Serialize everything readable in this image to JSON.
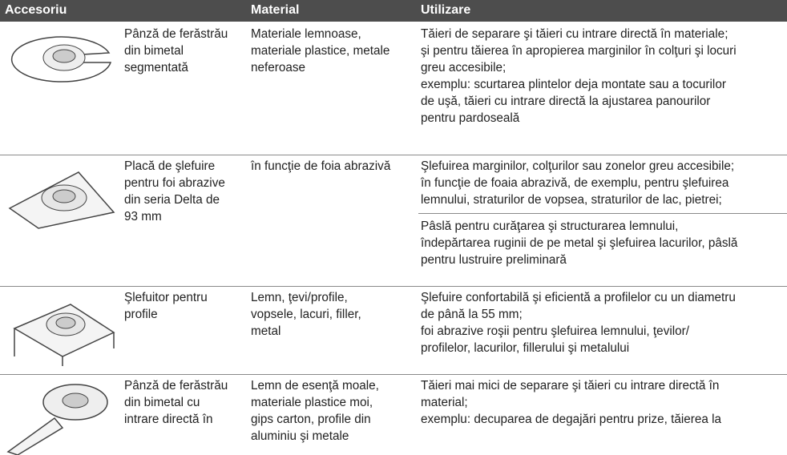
{
  "table": {
    "headers": [
      "Accesoriu",
      "Material",
      "Utilizare"
    ],
    "rows": [
      {
        "name": [
          "Pânză de ferăstrău",
          "din bimetal",
          "segmentată"
        ],
        "material": [
          "Materiale lemnoase,",
          "materiale plastice, metale",
          "neferoase"
        ],
        "usage": [
          [
            "Tăieri de separare şi tăieri cu intrare directă în materiale;",
            "şi pentru tăierea în apropierea marginilor în colţuri şi locuri",
            "greu accesibile;",
            "exemplu: scurtarea plintelor deja montate sau a tocurilor",
            "de uşă, tăieri cu intrare directă la ajustarea panourilor",
            "pentru pardoseală"
          ]
        ]
      },
      {
        "name": [
          "Placă de şlefuire",
          "pentru foi abrazive",
          "din seria Delta de",
          "93 mm"
        ],
        "material": [
          "în funcţie de foia abrazivă"
        ],
        "usage": [
          [
            "Şlefuirea marginilor, colţurilor sau zonelor greu accesibile;",
            "în funcţie de foaia abrazivă, de exemplu, pentru şlefuirea",
            "lemnului, straturilor de vopsea, straturilor de lac, pietrei;"
          ],
          [
            "Pâslă pentru curăţarea şi structurarea lemnului,",
            "îndepărtarea ruginii de pe metal şi şlefuirea lacurilor, pâslă",
            "pentru lustruire preliminară"
          ]
        ]
      },
      {
        "name": [
          "Şlefuitor pentru",
          "profile"
        ],
        "material": [
          "Lemn, ţevi/profile,",
          "vopsele, lacuri, filler,",
          "metal"
        ],
        "usage": [
          [
            "Şlefuire confortabilă şi eficientă a profilelor cu un diametru",
            "de până la 55 mm;",
            "foi abrazive roşii pentru şlefuirea lemnului, ţevilor/",
            "profilelor, lacurilor, fillerului şi metalului"
          ]
        ]
      },
      {
        "name": [
          "Pânză de ferăstrău",
          "din bimetal cu",
          "intrare directă în"
        ],
        "material": [
          "Lemn de esenţă moale,",
          "materiale plastice moi,",
          "gips carton, profile din",
          "aluminiu şi metale"
        ],
        "usage": [
          [
            "Tăieri mai mici de separare şi tăieri cu intrare directă în",
            "material;",
            "exemplu: decuparea de degajări pentru prize, tăierea la"
          ]
        ]
      }
    ]
  }
}
